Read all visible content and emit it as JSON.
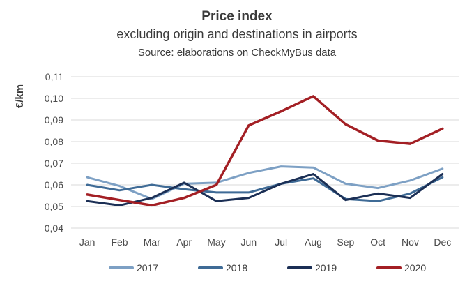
{
  "chart_data": {
    "type": "line",
    "title": "Price index",
    "subtitle": "excluding origin and destinations in airports",
    "source": "Source: elaborations on CheckMyBus data",
    "xlabel": "",
    "ylabel": "€/km",
    "categories": [
      "Jan",
      "Feb",
      "Mar",
      "Apr",
      "May",
      "Jun",
      "Jul",
      "Aug",
      "Sep",
      "Oct",
      "Nov",
      "Dec"
    ],
    "ylim": [
      0.04,
      0.11
    ],
    "yticks": [
      0.04,
      0.05,
      0.06,
      0.07,
      0.08,
      0.09,
      0.1,
      0.11
    ],
    "ytick_labels": [
      "0,04",
      "0,05",
      "0,06",
      "0,07",
      "0,08",
      "0,09",
      "0,10",
      "0,11"
    ],
    "grid": true,
    "legend_position": "bottom",
    "series": [
      {
        "name": "2017",
        "color": "#7da0c4",
        "values": [
          0.0635,
          0.0595,
          0.0535,
          0.0605,
          0.061,
          0.0655,
          0.0685,
          0.068,
          0.0605,
          0.0585,
          0.062,
          0.0675
        ]
      },
      {
        "name": "2018",
        "color": "#3f6b96",
        "values": [
          0.06,
          0.0575,
          0.06,
          0.058,
          0.0565,
          0.0565,
          0.0605,
          0.063,
          0.0535,
          0.0525,
          0.056,
          0.0635
        ]
      },
      {
        "name": "2019",
        "color": "#1b2f55",
        "values": [
          0.0525,
          0.0505,
          0.054,
          0.061,
          0.0525,
          0.054,
          0.0605,
          0.065,
          0.053,
          0.056,
          0.054,
          0.065
        ]
      },
      {
        "name": "2020",
        "color": "#a31f24",
        "values": [
          0.0555,
          0.053,
          0.0505,
          0.054,
          0.06,
          0.0875,
          0.094,
          0.101,
          0.088,
          0.0805,
          0.079,
          0.086
        ]
      }
    ]
  }
}
